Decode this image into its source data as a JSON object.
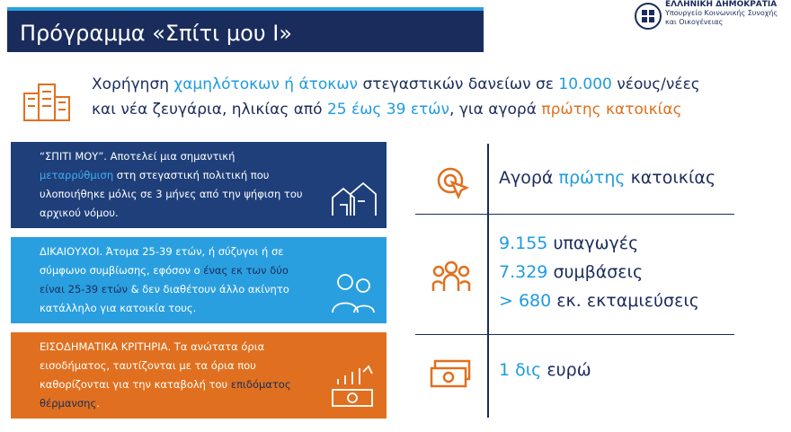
{
  "header": {
    "title": "Πρόγραμμα «Σπίτι μου Ι»",
    "logo": [
      "ΕΛΛΗΝΙΚΗ ΔΗΜΟΚΡΑΤΙΑ",
      "Υπουργείο Κοινωνικής Συνοχής",
      "και Οικογένειας"
    ]
  },
  "intro": {
    "lines": [
      [
        {
          "text": "Χορήγηση ",
          "color": "#1a2c5b"
        },
        {
          "text": "χαμηλότοκων ή άτοκων",
          "color": "#1e9be0"
        },
        {
          "text": " στεγαστικών δανείων σε ",
          "color": "#1a2c5b"
        },
        {
          "text": "10.000",
          "color": "#1e9be0"
        },
        {
          "text": " νέους/νέες",
          "color": "#1a2c5b"
        }
      ],
      [
        {
          "text": "και νέα ζευγάρια, ηλικίας από ",
          "color": "#1a2c5b"
        },
        {
          "text": "25 έως 39 ετών",
          "color": "#1e9be0"
        },
        {
          "text": ", για αγορά ",
          "color": "#1a2c5b"
        },
        {
          "text": "πρώτης κατοικίας",
          "color": "#e0701f"
        }
      ]
    ]
  },
  "boxes": [
    {
      "bg": "#1f3f7a",
      "segments": [
        {
          "text": "“ΣΠΙΤΙ ΜΟΥ”. Αποτελεί μια σημαντική ",
          "color": "#ffffff"
        },
        {
          "text": "μεταρρύθμιση",
          "color": "#3fb0f0"
        },
        {
          "text": " στη στεγαστική πολιτική που υλοποιήθηκε μόλις σε 3 μήνες από την ψήφιση του αρχικού νόμου.",
          "color": "#ffffff"
        }
      ]
    },
    {
      "bg": "#2a9fe0",
      "segments": [
        {
          "text": "ΔΙΚΑΙΟΥΧΟΙ. Άτομα 25-39 ετών, ή σύζυγοι ή σε σύμφωνο συμβίωσης, εφόσον ο ",
          "color": "#ffffff"
        },
        {
          "text": "ένας εκ των δύο είναι 25-39 ετών",
          "color": "#1a2c5b"
        },
        {
          "text": " & δεν διαθέτουν άλλο ακίνητο κατάλληλο για κατοικία τους.",
          "color": "#ffffff"
        }
      ]
    },
    {
      "bg": "#e0701f",
      "segments": [
        {
          "text": "ΕΙΣΟΔΗΜΑΤΙΚΑ ΚΡΙΤΗΡΙΑ. Τα ανώτατα όρια εισοδήματος, ταυτίζονται με τα όρια που καθορίζονται για την καταβολή του ",
          "color": "#ffffff"
        },
        {
          "text": "επιδόματος θέρμανσης",
          "color": "#1a2c5b"
        },
        {
          "text": ".",
          "color": "#ffffff"
        }
      ]
    }
  ],
  "stats": [
    {
      "lines": [
        [
          {
            "text": "Αγορά ",
            "color": "#1a2c5b"
          },
          {
            "text": "πρώτης",
            "color": "#1e9be0"
          },
          {
            "text": " κατοικίας",
            "color": "#1a2c5b"
          }
        ]
      ]
    },
    {
      "lines": [
        [
          {
            "text": "9.155",
            "color": "#1e9be0"
          },
          {
            "text": " υπαγωγές",
            "color": "#1a2c5b"
          }
        ],
        [
          {
            "text": "7.329",
            "color": "#1e9be0"
          },
          {
            "text": " συμβάσεις",
            "color": "#1a2c5b"
          }
        ],
        [
          {
            "text": "> 680",
            "color": "#1e9be0"
          },
          {
            "text": " εκ. εκταμιεύσεις",
            "color": "#1a2c5b"
          }
        ]
      ]
    },
    {
      "lines": [
        [
          {
            "text": "1 δις",
            "color": "#1e9be0"
          },
          {
            "text": " ευρώ",
            "color": "#1a2c5b"
          }
        ]
      ]
    }
  ]
}
